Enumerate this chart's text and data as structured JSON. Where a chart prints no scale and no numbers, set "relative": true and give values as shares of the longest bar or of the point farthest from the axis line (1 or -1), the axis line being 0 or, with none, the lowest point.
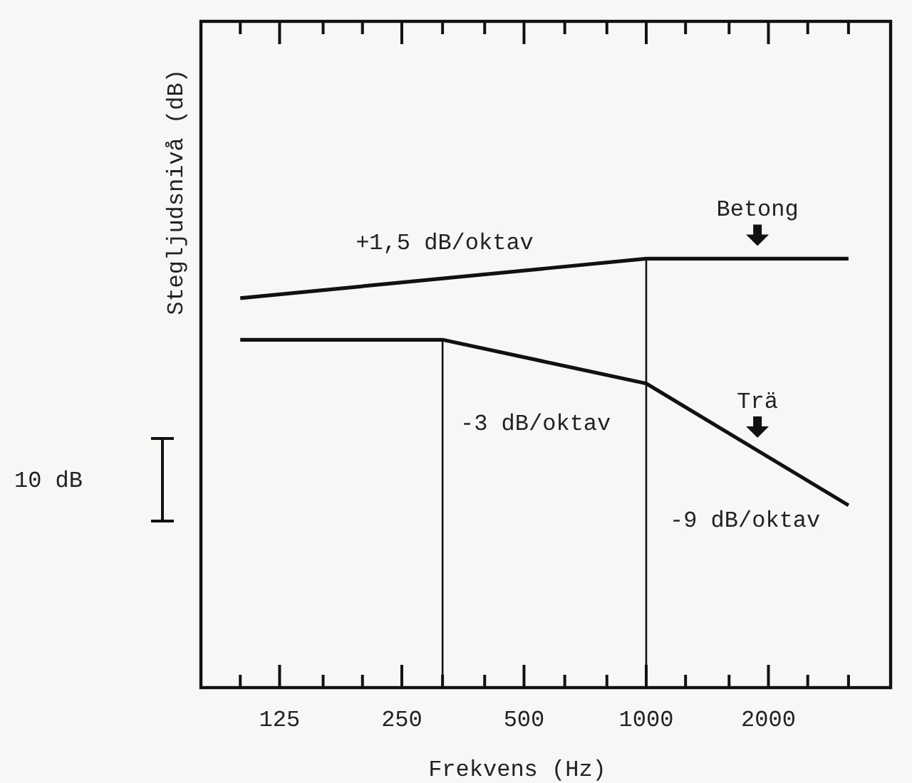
{
  "chart_data": {
    "type": "line",
    "xlabel": "Frekvens (Hz)",
    "ylabel": "Stegljudsnivå (dB)",
    "relative": true,
    "log": "x",
    "xlim": [
      80,
      4000
    ],
    "xticks": [
      {
        "value": 80,
        "label": null
      },
      {
        "value": 100,
        "label": null
      },
      125,
      {
        "value": 160,
        "label": null
      },
      {
        "value": 200,
        "label": null
      },
      250,
      {
        "value": 315,
        "label": null
      },
      {
        "value": 400,
        "label": null
      },
      500,
      {
        "value": 630,
        "label": null
      },
      {
        "value": 800,
        "label": null
      },
      1000,
      {
        "value": 1250,
        "label": null
      },
      {
        "value": 1600,
        "label": null
      },
      2000,
      {
        "value": 2500,
        "label": null
      },
      {
        "value": 3150,
        "label": null
      }
    ],
    "grid": false,
    "marker": "none",
    "line_style": "solid",
    "series": [
      {
        "name": "Betong",
        "color": "#111111",
        "x": [
          100,
          1000,
          3150
        ],
        "values": [
          0.908,
          1,
          1
        ]
      },
      {
        "name": "Trä",
        "color": "#111111",
        "x": [
          100,
          315,
          1000,
          3150
        ],
        "values": [
          0.811,
          0.811,
          0.709,
          0.425
        ]
      }
    ],
    "ref_lines": [
      {
        "axis": "x",
        "value": 315,
        "color": "#111111"
      },
      {
        "axis": "x",
        "value": 1000,
        "color": "#111111"
      }
    ],
    "annotations": [
      "+1,5 dB/oktav",
      "-3 dB/oktav",
      "-9 dB/oktav",
      "10 dB"
    ]
  }
}
